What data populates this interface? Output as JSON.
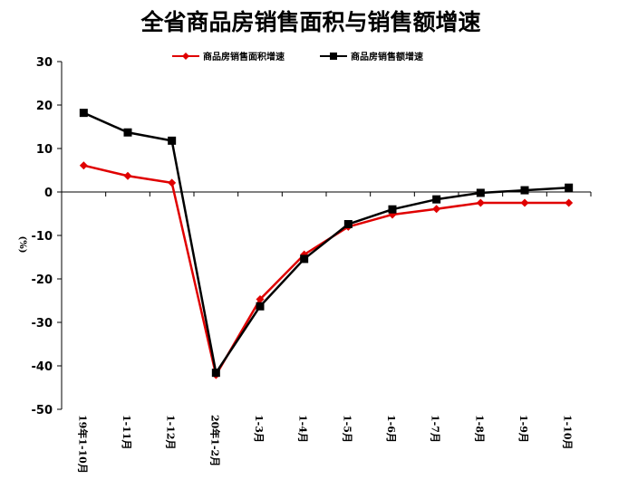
{
  "chart_data": {
    "type": "line",
    "title": "全省商品房销售面积与销售额增速",
    "ylabel": "(%)",
    "xlabel": "",
    "ylim": [
      -50,
      30
    ],
    "yticks": [
      30,
      20,
      10,
      0,
      -10,
      -20,
      -30,
      -40,
      -50
    ],
    "categories": [
      "19年1-10月",
      "1-11月",
      "1-12月",
      "20年1-2月",
      "1-3月",
      "1-4月",
      "1-5月",
      "1-6月",
      "1-7月",
      "1-8月",
      "1-9月",
      "1-10月"
    ],
    "series": [
      {
        "name": "商品房销售面积增速",
        "color": "#e00000",
        "marker": "diamond",
        "values": [
          6.1,
          3.7,
          2.1,
          -42.1,
          -24.7,
          -14.4,
          -8.0,
          -5.2,
          -3.9,
          -2.5,
          -2.5,
          -2.5
        ]
      },
      {
        "name": "商品房销售额增速",
        "color": "#000000",
        "marker": "square",
        "values": [
          18.2,
          13.7,
          11.8,
          -41.6,
          -26.3,
          -15.4,
          -7.4,
          -4.0,
          -1.7,
          -0.2,
          0.4,
          1.0
        ]
      }
    ],
    "legend_position": "top-center",
    "grid": false
  }
}
